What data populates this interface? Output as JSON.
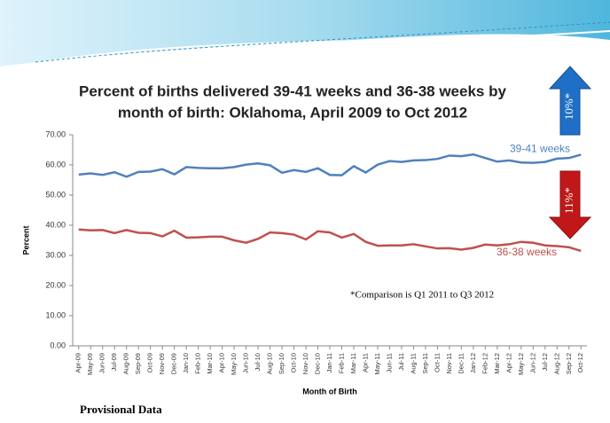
{
  "chart_data": {
    "type": "line",
    "title": [
      "Percent of births delivered 39-41 weeks and 36-38 weeks by",
      "month of birth: Oklahoma, April 2009 to Oct 2012"
    ],
    "y_label": "Percent",
    "x_label": "Month of Birth",
    "categories": [
      "Apr-09",
      "May-09",
      "Jun-09",
      "Jul-09",
      "Aug-09",
      "Sep-09",
      "Oct-09",
      "Nov-09",
      "Dec-09",
      "Jan-10",
      "Feb-10",
      "Mar-10",
      "Apr-10",
      "May-10",
      "Jun-10",
      "Jul-10",
      "Aug-10",
      "Sep-10",
      "Oct-10",
      "Nov-10",
      "Dec-10",
      "Jan-11",
      "Feb-11",
      "Mar-11",
      "Apr-11",
      "May-11",
      "Jun-11",
      "Jul-11",
      "Aug-11",
      "Sep-11",
      "Oct-11",
      "Nov-11",
      "Dec-11",
      "Jan-12",
      "Feb-12",
      "Mar-12",
      "Apr-12",
      "May-12",
      "Jun-12",
      "Jul-12",
      "Aug-12",
      "Sep-12",
      "Oct-12"
    ],
    "series": [
      {
        "name": "39-41 weeks",
        "color": "#4f81bd",
        "values": [
          56.8,
          57.2,
          56.7,
          57.6,
          56.1,
          57.7,
          57.8,
          58.6,
          56.9,
          59.3,
          59.0,
          58.9,
          58.9,
          59.3,
          60.1,
          60.5,
          59.9,
          57.4,
          58.3,
          57.7,
          58.9,
          56.7,
          56.6,
          59.6,
          57.5,
          60.1,
          61.3,
          61.0,
          61.5,
          61.6,
          62.0,
          63.1,
          62.9,
          63.5,
          62.3,
          61.1,
          61.5,
          60.8,
          60.7,
          61.0,
          62.1,
          62.3,
          63.4
        ]
      },
      {
        "name": "36-38 weeks",
        "color": "#c0504d",
        "values": [
          38.6,
          38.3,
          38.4,
          37.4,
          38.4,
          37.5,
          37.4,
          36.3,
          38.2,
          35.9,
          36.0,
          36.2,
          36.2,
          35.0,
          34.2,
          35.5,
          37.6,
          37.4,
          36.9,
          35.3,
          38.0,
          37.6,
          35.9,
          37.1,
          34.5,
          33.2,
          33.3,
          33.3,
          33.7,
          33.0,
          32.3,
          32.4,
          31.9,
          32.5,
          33.6,
          33.3,
          33.7,
          34.5,
          34.2,
          33.3,
          33.1,
          32.7,
          31.5
        ]
      }
    ],
    "ylim": [
      0,
      70
    ],
    "yticks": [
      {
        "value": 0,
        "label": "0.00"
      },
      {
        "value": 10,
        "label": "10.00"
      },
      {
        "value": 20,
        "label": "20.00"
      },
      {
        "value": 30,
        "label": "30.00"
      },
      {
        "value": 40,
        "label": "40.00"
      },
      {
        "value": 50,
        "label": "50.00"
      },
      {
        "value": 60,
        "label": "60.00"
      },
      {
        "value": 70,
        "label": "70.00"
      }
    ],
    "grid": false,
    "annotations": [
      "*Comparison is Q1 2011 to Q3 2012",
      "10%*",
      "11%*"
    ],
    "footer": "Provisional Data"
  }
}
